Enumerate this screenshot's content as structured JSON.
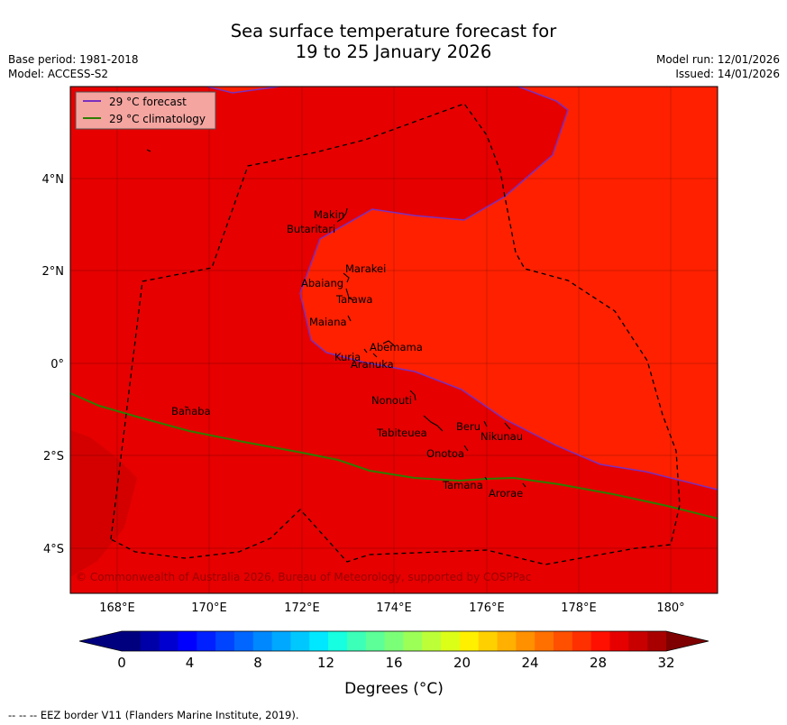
{
  "title_line1": "Sea surface temperature forecast for",
  "title_line2": "19 to 25 January 2026",
  "base_period": "Base period: 1981-2018",
  "model": "Model: ACCESS-S2",
  "model_run": "Model run: 12/01/2026",
  "issued": "Issued: 14/01/2026",
  "legend": {
    "forecast": "29 °C  forecast",
    "climatology": "29 °C  climatology",
    "forecast_color": "#7b2fbe",
    "climatology_color": "#2e7d00"
  },
  "map": {
    "lon_range": [
      167,
      181
    ],
    "lat_range": [
      -5,
      6
    ],
    "x_ticks": [
      "168°E",
      "170°E",
      "172°E",
      "174°E",
      "176°E",
      "178°E",
      "180°"
    ],
    "y_ticks": [
      "4°N",
      "2°N",
      "0°",
      "2°S",
      "4°S"
    ],
    "fill_colors": {
      "warm_29_30": "#e60000",
      "warm_30_31": "#ff2000",
      "warm_28_29": "#d40000"
    }
  },
  "islands": [
    "Makin",
    "Butaritari",
    "Marakei",
    "Abaiang",
    "Tarawa",
    "Maiana",
    "Abemama",
    "Kuria",
    "Aranuka",
    "Nonouti",
    "Banaba",
    "Tabiteuea",
    "Beru",
    "Nikunau",
    "Onotoa",
    "Tamana",
    "Arorae"
  ],
  "copyright": "© Commonwealth of Australia 2026, Bureau of Meteorology, supported by COSPPac",
  "colorbar": {
    "label": "Degrees (°C)",
    "ticks": [
      "0",
      "4",
      "8",
      "12",
      "16",
      "20",
      "24",
      "28",
      "32"
    ],
    "min": 0,
    "max": 32,
    "colors": [
      "#00007f",
      "#0000a8",
      "#0000d0",
      "#0000ff",
      "#0020ff",
      "#0044ff",
      "#0066ff",
      "#0088ff",
      "#00a8ff",
      "#00c8ff",
      "#00e8ff",
      "#16ffe0",
      "#3cffb8",
      "#5cff98",
      "#7cff78",
      "#9cff58",
      "#bcff38",
      "#dcff18",
      "#fff000",
      "#ffd000",
      "#ffb000",
      "#ff9000",
      "#ff7000",
      "#ff5000",
      "#ff3000",
      "#ff1000",
      "#e60000",
      "#c80000",
      "#a80000"
    ],
    "under_color": "#00007f",
    "over_color": "#7f0000"
  },
  "footer": "--  --  -- EEZ border V11 (Flanders Marine Institute, 2019)."
}
